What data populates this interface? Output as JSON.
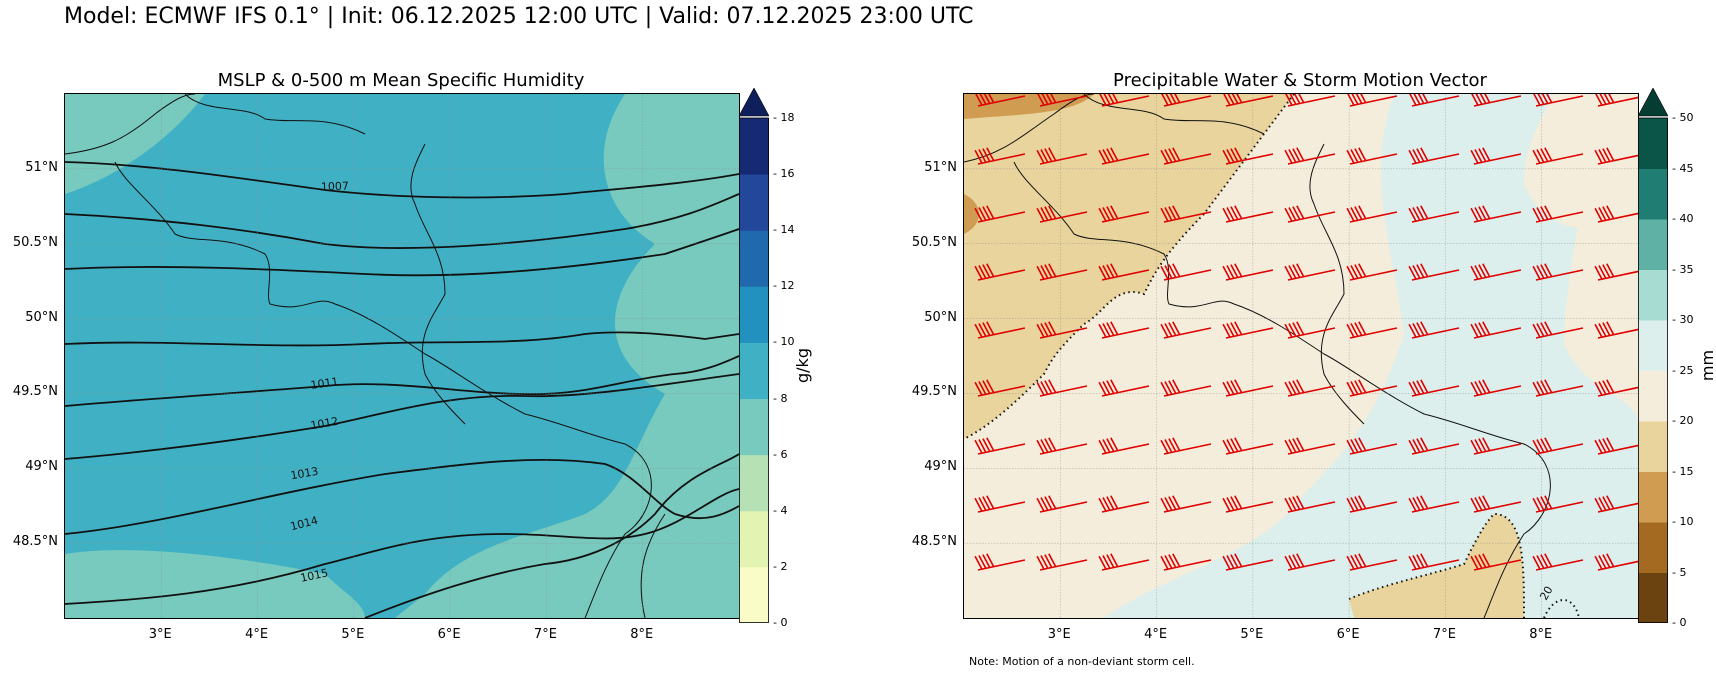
{
  "suptitle": "Model: ECMWF IFS 0.1° | Init: 06.12.2025 12:00 UTC | Valid: 07.12.2025 23:00 UTC",
  "note": "Note: Motion of a non-deviant storm cell.",
  "chart_data": [
    {
      "type": "heatmap",
      "title": "MSLP & 0-500 m Mean Specific Humidity",
      "xlabel": "",
      "ylabel": "",
      "xlim": [
        2.0,
        9.0
      ],
      "ylim": [
        48.0,
        51.5
      ],
      "xticks": [
        "3°E",
        "4°E",
        "5°E",
        "6°E",
        "7°E",
        "8°E"
      ],
      "xtick_values": [
        3,
        4,
        5,
        6,
        7,
        8
      ],
      "yticks": [
        "51°N",
        "50.5°N",
        "50°N",
        "49.5°N",
        "49°N",
        "48.5°N"
      ],
      "ytick_values": [
        51,
        50.5,
        50,
        49.5,
        49,
        48.5
      ],
      "grid": true,
      "colorbar": {
        "label": "g/kg",
        "levels": [
          0,
          2,
          4,
          6,
          8,
          10,
          12,
          14,
          16,
          18
        ],
        "tick_labels": [
          "0",
          "2",
          "4",
          "6",
          "8",
          "10",
          "12",
          "14",
          "16",
          "18"
        ],
        "colors": [
          "#fafcc8",
          "#e3f3b2",
          "#b6e1b5",
          "#78cabf",
          "#40b1c4",
          "#2391c0",
          "#2169ad",
          "#23479b",
          "#162a74"
        ],
        "extend": "max",
        "extend_color": "#0f1f5c"
      },
      "isobars_hPa": [
        {
          "label": "1007",
          "value": 1007
        },
        {
          "label": "1011",
          "value": 1011
        },
        {
          "label": "1012",
          "value": 1012
        },
        {
          "label": "1013",
          "value": 1013
        },
        {
          "label": "1014",
          "value": 1014
        },
        {
          "label": "1015",
          "value": 1015
        }
      ]
    },
    {
      "type": "heatmap",
      "title": "Precipitable Water & Storm Motion Vector",
      "xlabel": "",
      "ylabel": "",
      "xlim": [
        2.0,
        9.0
      ],
      "ylim": [
        48.0,
        51.5
      ],
      "xticks": [
        "3°E",
        "4°E",
        "5°E",
        "6°E",
        "7°E",
        "8°E"
      ],
      "xtick_values": [
        3,
        4,
        5,
        6,
        7,
        8
      ],
      "yticks": [
        "51°N",
        "50.5°N",
        "50°N",
        "49.5°N",
        "49°N",
        "48.5°N"
      ],
      "ytick_values": [
        51,
        50.5,
        50,
        49.5,
        49,
        48.5
      ],
      "grid": true,
      "colorbar": {
        "label": "mm",
        "levels": [
          0,
          5,
          10,
          15,
          20,
          25,
          30,
          35,
          40,
          45,
          50
        ],
        "tick_labels": [
          "0",
          "5",
          "10",
          "15",
          "20",
          "25",
          "30",
          "35",
          "40",
          "45",
          "50"
        ],
        "colors": [
          "#6b4310",
          "#a56a22",
          "#cf9c52",
          "#e8d49c",
          "#f5eddb",
          "#dcefed",
          "#a7dcd3",
          "#5fb1a6",
          "#1f7d74",
          "#0b5548"
        ],
        "extend": "max",
        "extend_color": "#063d33"
      },
      "contour_label": "20",
      "barb_color": "#e00000"
    }
  ]
}
